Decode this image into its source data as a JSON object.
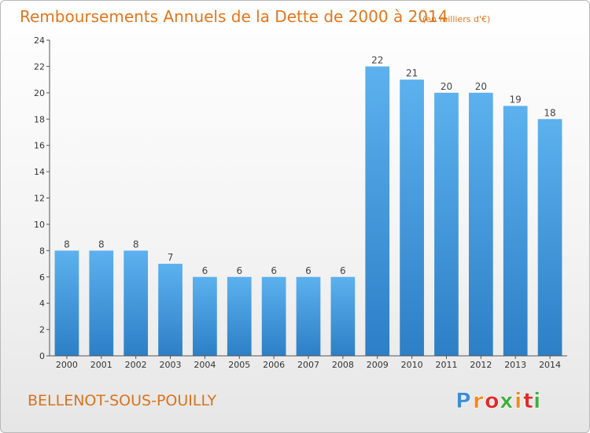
{
  "chart_data": {
    "type": "bar",
    "title": "Remboursements Annuels de la Dette de 2000 à 2014",
    "subtitle": "(en milliers d'€)",
    "xlabel": "",
    "ylabel": "",
    "categories": [
      "2000",
      "2001",
      "2002",
      "2003",
      "2004",
      "2005",
      "2006",
      "2007",
      "2008",
      "2009",
      "2010",
      "2011",
      "2012",
      "2013",
      "2014"
    ],
    "values": [
      8,
      8,
      8,
      7,
      6,
      6,
      6,
      6,
      6,
      22,
      21,
      20,
      20,
      19,
      18
    ],
    "ylim": [
      0,
      24
    ],
    "yticks": [
      0,
      2,
      4,
      6,
      8,
      10,
      12,
      14,
      16,
      18,
      20,
      22,
      24
    ],
    "grid": false,
    "bar_color": "#4a9be0"
  },
  "footer": {
    "commune": "BELLENOT-SOUS-POUILLY",
    "logo_letters": [
      "P",
      "r",
      "o",
      "x",
      "i",
      "t",
      "i"
    ],
    "logo_colors": [
      "#3a8fd6",
      "#f08a1c",
      "#e02a2a",
      "#3fae3a",
      "#f08a1c",
      "#e02a2a",
      "#3fae3a"
    ]
  }
}
